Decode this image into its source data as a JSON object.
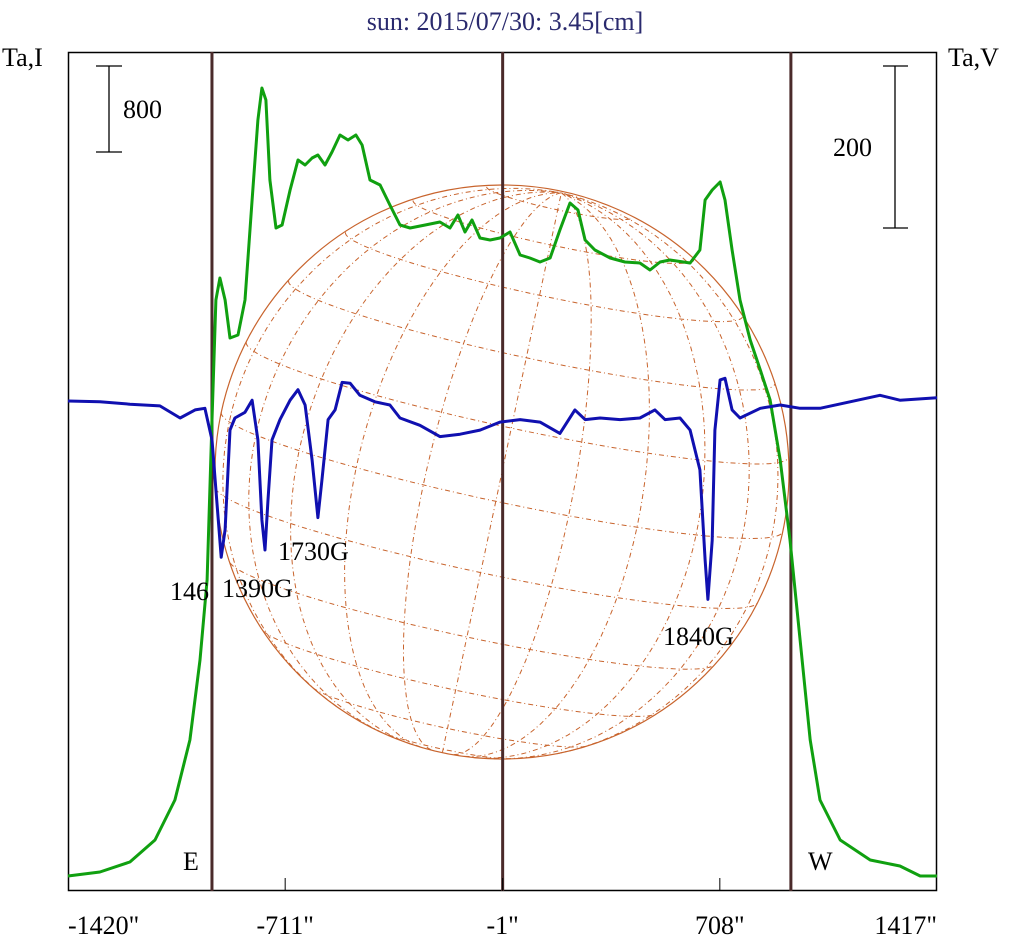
{
  "chart_data": {
    "type": "line",
    "title": "sun: 2015/07/30: 3.45[cm]",
    "ylabel_left": "Ta,I",
    "ylabel_right": "Ta,V",
    "xlim": [
      -1420,
      1417
    ],
    "x_ticks": [
      "-1420\"",
      "-711\"",
      "-1\"",
      "708\"",
      "1417\""
    ],
    "x_tick_values": [
      -1420,
      -711,
      -1,
      708,
      1417
    ],
    "limb_lines": [
      -950,
      940
    ],
    "center_line": -1,
    "limb_labels": {
      "east": "E",
      "west": "W"
    },
    "scale_bar_left": {
      "label": "800",
      "value": 800
    },
    "scale_bar_right": {
      "label": "200",
      "value": 200
    },
    "annotations": [
      {
        "text": "146",
        "x": -1000
      },
      {
        "text": "1390G",
        "x": -820
      },
      {
        "text": "1730G",
        "x": -640
      },
      {
        "text": "1840G",
        "x": 530
      }
    ],
    "series": [
      {
        "name": "I",
        "color": "#10a010",
        "x": [
          -1420,
          -1316,
          -1218,
          -1136,
          -1071,
          -1022,
          -989,
          -966,
          -950,
          -937,
          -924,
          -907,
          -891,
          -865,
          -842,
          -819,
          -800,
          -787,
          -774,
          -761,
          -741,
          -721,
          -695,
          -669,
          -646,
          -623,
          -604,
          -581,
          -558,
          -532,
          -506,
          -480,
          -460,
          -434,
          -401,
          -369,
          -336,
          -303,
          -254,
          -206,
          -173,
          -147,
          -124,
          -101,
          -75,
          -42,
          -10,
          23,
          56,
          88,
          121,
          154,
          186,
          219,
          245,
          268,
          300,
          350,
          398,
          447,
          480,
          513,
          545,
          611,
          643,
          660,
          683,
          709,
          725,
          748,
          774,
          807,
          840,
          872,
          905,
          937,
          970,
          1003,
          1035,
          1101,
          1199,
          1296,
          1362,
          1417
        ],
        "values": [
          0,
          37,
          130,
          335,
          707,
          1265,
          2009,
          2753,
          4241,
          5357,
          5561,
          5357,
          5003,
          5031,
          5357,
          6287,
          7031,
          7328,
          7217,
          6473,
          6026,
          6054,
          6380,
          6659,
          6612,
          6677,
          6705,
          6612,
          6733,
          6891,
          6845,
          6891,
          6798,
          6473,
          6426,
          6240,
          6054,
          6026,
          6054,
          6082,
          6026,
          6147,
          5989,
          6101,
          5933,
          5915,
          5933,
          5989,
          5775,
          5747,
          5710,
          5747,
          6008,
          6259,
          6194,
          5915,
          5822,
          5747,
          5710,
          5701,
          5636,
          5710,
          5729,
          5701,
          5822,
          6287,
          6380,
          6454,
          6287,
          5822,
          5357,
          4985,
          4706,
          4427,
          3869,
          3125,
          2195,
          1265,
          707,
          335,
          149,
          93,
          0,
          0
        ]
      },
      {
        "name": "V",
        "color": "#1010b0",
        "x": [
          -1420,
          -1316,
          -1218,
          -1120,
          -1054,
          -1005,
          -973,
          -950,
          -930,
          -920,
          -907,
          -891,
          -875,
          -842,
          -819,
          -800,
          -787,
          -777,
          -767,
          -754,
          -728,
          -695,
          -669,
          -646,
          -623,
          -604,
          -591,
          -571,
          -548,
          -525,
          -499,
          -467,
          -418,
          -369,
          -336,
          -271,
          -206,
          -140,
          -75,
          -10,
          56,
          121,
          186,
          235,
          268,
          317,
          382,
          447,
          496,
          529,
          578,
          611,
          643,
          660,
          669,
          683,
          692,
          709,
          725,
          748,
          774,
          840,
          905,
          970,
          1035,
          1133,
          1231,
          1296,
          1417
        ],
        "values": [
          0,
          -1,
          -4,
          -6,
          -21,
          -11,
          -9,
          -48,
          -144,
          -193,
          -159,
          -36,
          -21,
          -14,
          1,
          -48,
          -147,
          -184,
          -122,
          -48,
          -23,
          1,
          14,
          -5,
          -73,
          -144,
          -98,
          -23,
          -11,
          23,
          22,
          7,
          -1,
          -5,
          -21,
          -30,
          -44,
          -41,
          -36,
          -26,
          -23,
          -26,
          -40,
          -11,
          -23,
          -21,
          -23,
          -21,
          -11,
          -23,
          -21,
          -36,
          -85,
          -196,
          -245,
          -172,
          -36,
          26,
          28,
          -11,
          -21,
          -9,
          -5,
          -9,
          -9,
          -1,
          7,
          1,
          4
        ]
      }
    ],
    "colors": {
      "title": "#2a2a6e",
      "frame": "#000000",
      "limb": "#4a2a2a",
      "grid": "#c8642d"
    }
  }
}
